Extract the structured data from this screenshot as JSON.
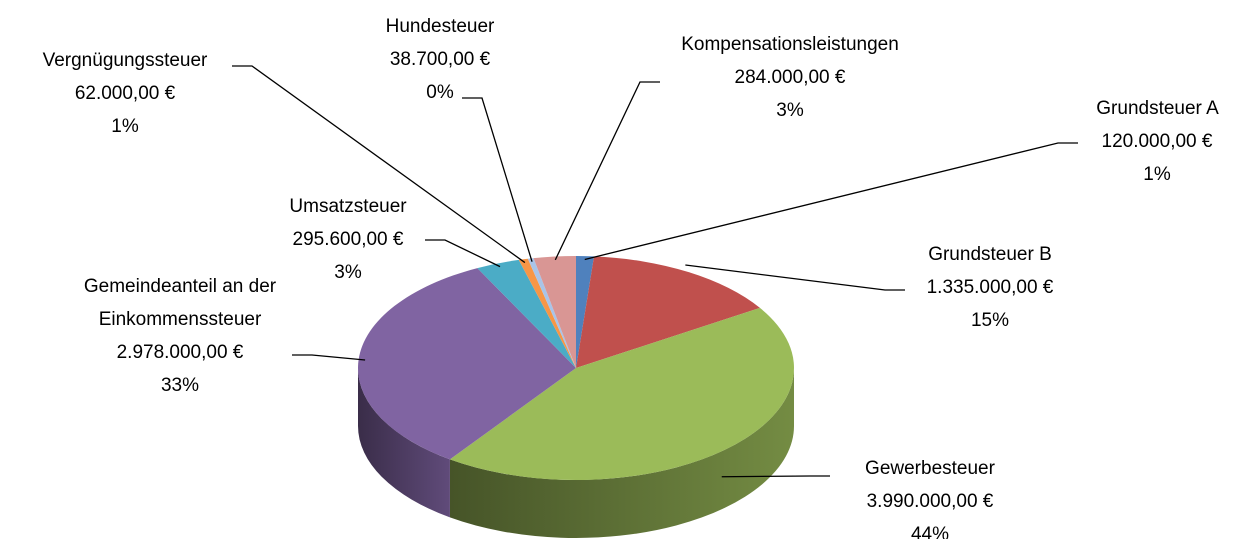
{
  "chart_data": {
    "type": "pie3d",
    "categories": [
      "Grundsteuer A",
      "Grundsteuer B",
      "Gewerbesteuer",
      "Gemeindeanteil an der Einkommenssteuer",
      "Umsatzsteuer",
      "Vergnügungssteuer",
      "Hundesteuer",
      "Kompensationsleistungen"
    ],
    "values": [
      120000,
      1335000,
      3990000,
      2978000,
      295600,
      62000,
      38700,
      284000
    ],
    "value_labels": [
      "120.000,00 €",
      "1.335.000,00 €",
      "3.990.000,00 €",
      "2.978.000,00 €",
      "295.600,00 €",
      "62.000,00 €",
      "38.700,00 €",
      "284.000,00 €"
    ],
    "percent_labels": [
      "1%",
      "15%",
      "44%",
      "33%",
      "3%",
      "1%",
      "0%",
      "3%"
    ],
    "colors": [
      "#4f81bd",
      "#c0504d",
      "#9bbb59",
      "#8064a2",
      "#4bacc6",
      "#f79646",
      "#a9c4e8",
      "#d99694"
    ]
  }
}
